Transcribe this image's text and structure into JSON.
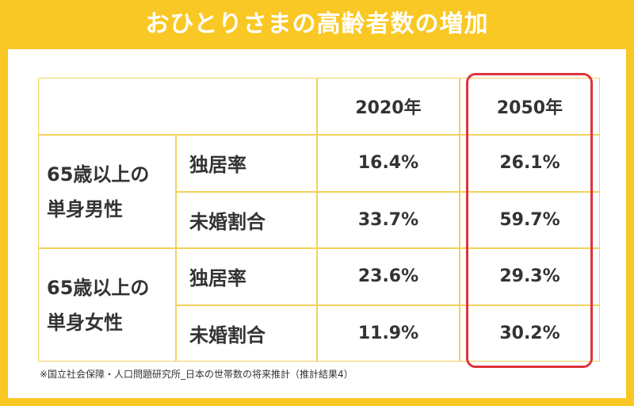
{
  "header": {
    "title": "おひとりさまの高齢者数の増加"
  },
  "table": {
    "columns": [
      "2020年",
      "2050年"
    ],
    "groups": [
      {
        "label_lines": [
          "65歳以上の",
          "単身男性"
        ],
        "rows": [
          {
            "label": "独居率",
            "values": [
              "16.4%",
              "26.1%"
            ]
          },
          {
            "label": "未婚割合",
            "values": [
              "33.7%",
              "59.7%"
            ]
          }
        ]
      },
      {
        "label_lines": [
          "65歳以上の",
          "単身女性"
        ],
        "rows": [
          {
            "label": "独居率",
            "values": [
              "23.6%",
              "29.3%"
            ]
          },
          {
            "label": "未婚割合",
            "values": [
              "11.9%",
              "30.2%"
            ]
          }
        ]
      }
    ]
  },
  "footnote": "※国立社会保障・人口問題研究所_日本の世帯数の将来推計（推計結果4）"
}
